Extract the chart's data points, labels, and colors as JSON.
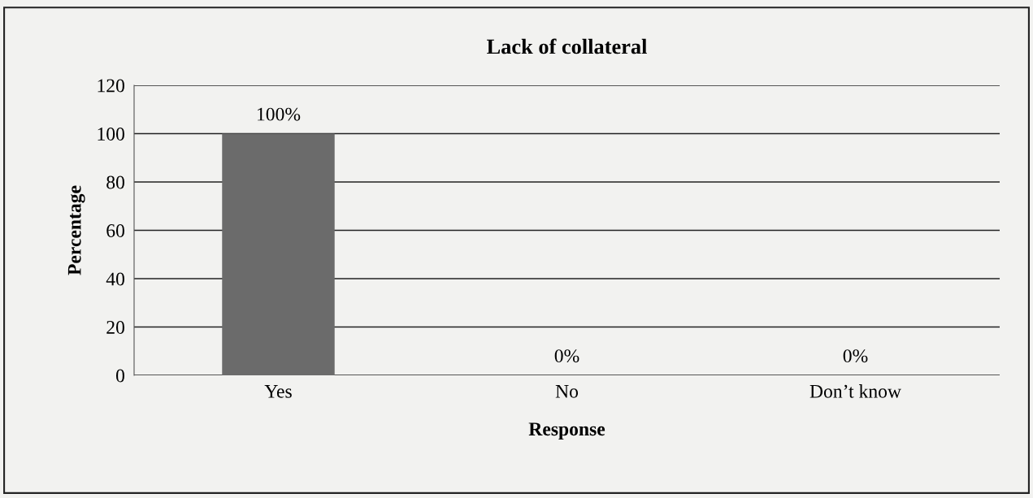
{
  "chart_data": {
    "type": "bar",
    "title": "Lack of collateral",
    "xlabel": "Response",
    "ylabel": "Percentage",
    "categories": [
      "Yes",
      "No",
      "Don’t know"
    ],
    "values": [
      100,
      0,
      0
    ],
    "value_labels": [
      "100%",
      "0%",
      "0%"
    ],
    "color": "#6b6b6b",
    "ylim": [
      0,
      120
    ],
    "yticks": [
      0,
      20,
      40,
      60,
      80,
      100,
      120
    ],
    "grid": "y",
    "legend": false
  }
}
